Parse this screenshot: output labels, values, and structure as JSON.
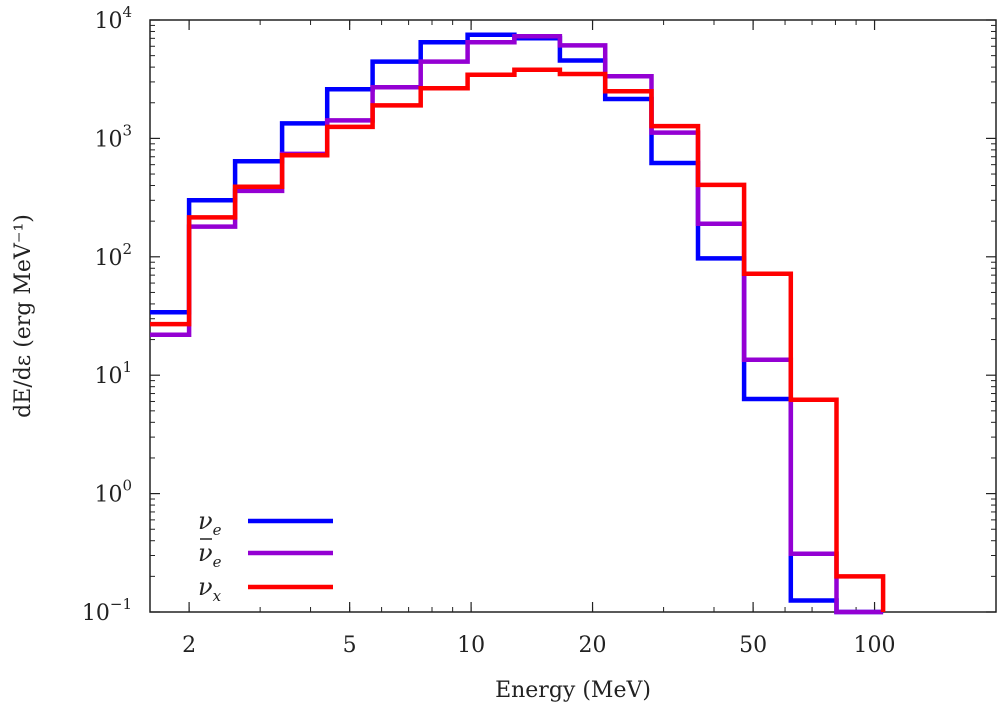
{
  "chart_data": {
    "type": "line",
    "step": true,
    "xscale": "log",
    "yscale": "log",
    "xlim": [
      1.6,
      200
    ],
    "ylim": [
      0.1,
      10000
    ],
    "xlabel": "Energy (MeV)",
    "ylabel": "dE/dε (erg MeV⁻¹)",
    "xticks": [
      {
        "value": 2,
        "label": "2"
      },
      {
        "value": 5,
        "label": "5"
      },
      {
        "value": 10,
        "label": "10"
      },
      {
        "value": 20,
        "label": "20"
      },
      {
        "value": 50,
        "label": "50"
      },
      {
        "value": 100,
        "label": "100"
      }
    ],
    "yticks": [
      {
        "value": 0.1,
        "base": "10",
        "exp": "−1"
      },
      {
        "value": 1,
        "base": "10",
        "exp": "0"
      },
      {
        "value": 10,
        "base": "10",
        "exp": "1"
      },
      {
        "value": 100,
        "base": "10",
        "exp": "2"
      },
      {
        "value": 1000,
        "base": "10",
        "exp": "3"
      },
      {
        "value": 10000,
        "base": "10",
        "exp": "4"
      }
    ],
    "bin_edges": [
      1.6,
      2.0,
      2.6,
      3.4,
      4.4,
      5.7,
      7.5,
      9.8,
      12.8,
      16.6,
      21.5,
      28.0,
      36.5,
      47.5,
      62.0,
      80.5,
      105.0
    ],
    "grid": false,
    "legend_position": "bottom-left",
    "series": [
      {
        "name": "νe",
        "name_base": "ν",
        "name_sub": "e",
        "bar": false,
        "color": "#0000ff",
        "values": [
          34,
          300,
          640,
          1340,
          2600,
          4450,
          6500,
          7500,
          7000,
          4550,
          2150,
          620,
          97,
          6.3,
          0.125,
          0.1
        ]
      },
      {
        "name": "ν̄e",
        "name_base": "ν",
        "name_sub": "e",
        "bar": true,
        "color": "#9400d3",
        "values": [
          22,
          180,
          360,
          740,
          1420,
          2700,
          4450,
          6500,
          7300,
          6100,
          3350,
          1120,
          190,
          13.5,
          0.31,
          0.1
        ]
      },
      {
        "name": "νx",
        "name_base": "ν",
        "name_sub": "x",
        "bar": false,
        "color": "#ff0000",
        "values": [
          27,
          215,
          390,
          720,
          1250,
          1900,
          2650,
          3450,
          3800,
          3500,
          2500,
          1270,
          405,
          72,
          6.2,
          0.2
        ]
      }
    ]
  }
}
